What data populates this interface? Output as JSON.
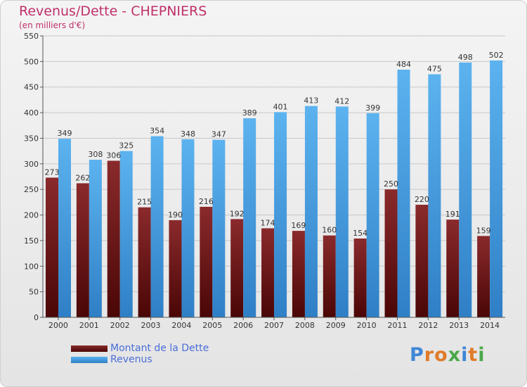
{
  "header": {
    "title": "Revenus/Dette - CHEPNIERS",
    "unit": "(en milliers d'€)"
  },
  "chart_data": {
    "type": "bar",
    "categories": [
      "2000",
      "2001",
      "2002",
      "2003",
      "2004",
      "2005",
      "2006",
      "2007",
      "2008",
      "2009",
      "2010",
      "2011",
      "2012",
      "2013",
      "2014"
    ],
    "series": [
      {
        "name": "Montant de la Dette",
        "color": "#7a1c1e",
        "values": [
          273,
          262,
          306,
          215,
          190,
          216,
          192,
          174,
          169,
          160,
          154,
          250,
          220,
          191,
          159
        ]
      },
      {
        "name": "Revenus",
        "color": "#4ea6e8",
        "values": [
          349,
          308,
          325,
          354,
          348,
          347,
          389,
          401,
          413,
          412,
          399,
          484,
          475,
          498,
          502
        ]
      }
    ],
    "ylim": [
      0,
      550
    ],
    "yticks": [
      0,
      50,
      100,
      150,
      200,
      250,
      300,
      350,
      400,
      450,
      500,
      550
    ],
    "grid": true,
    "legend_position": "bottom-left"
  },
  "legend": {
    "items": [
      {
        "label": "Montant de la Dette"
      },
      {
        "label": "Revenus"
      }
    ]
  },
  "logo": {
    "text": "Proxiti"
  }
}
